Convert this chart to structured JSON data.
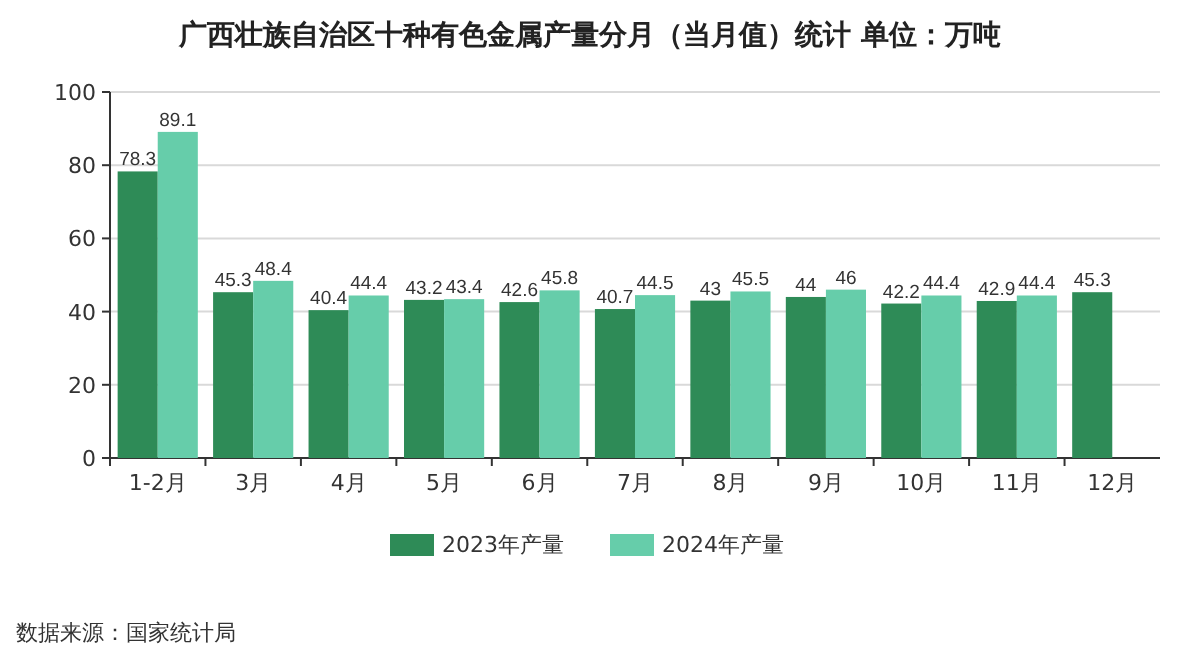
{
  "chart_data": {
    "type": "bar",
    "title": "广西壮族自治区十种有色金属产量分月（当月值）统计  单位：万吨",
    "categories": [
      "1-2月",
      "3月",
      "4月",
      "5月",
      "6月",
      "7月",
      "8月",
      "9月",
      "10月",
      "11月",
      "12月"
    ],
    "series": [
      {
        "name": "2023年产量",
        "color": "#2e8b57",
        "values": [
          78.3,
          45.3,
          40.4,
          43.2,
          42.6,
          40.7,
          43,
          44,
          42.2,
          42.9,
          45.3
        ]
      },
      {
        "name": "2024年产量",
        "color": "#66cdaa",
        "values": [
          89.1,
          48.4,
          44.4,
          43.4,
          45.8,
          44.5,
          45.5,
          46,
          44.4,
          44.4,
          null
        ]
      }
    ],
    "ylim": [
      0,
      100
    ],
    "yticks": [
      0,
      20,
      40,
      60,
      80,
      100
    ],
    "grid": "y",
    "legend": "bottom",
    "data_labels": true,
    "annotations": [
      "数据来源：国家统计局"
    ]
  }
}
